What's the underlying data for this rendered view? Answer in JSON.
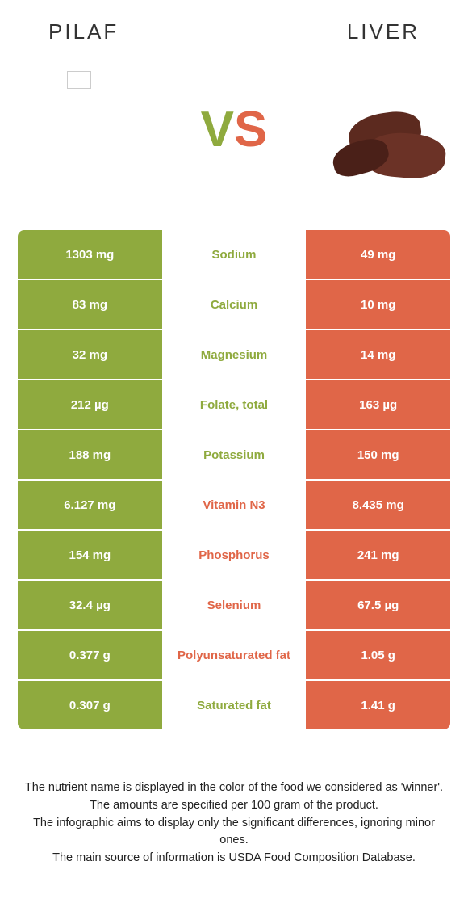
{
  "colors": {
    "green": "#8faa3e",
    "orange": "#e06648",
    "white": "#ffffff"
  },
  "food_left": "PILAF",
  "food_right": "LIVER",
  "vs_v": "V",
  "vs_s": "S",
  "rows": [
    {
      "left": "1303 mg",
      "label": "Sodium",
      "right": "49 mg",
      "winner": "left"
    },
    {
      "left": "83 mg",
      "label": "Calcium",
      "right": "10 mg",
      "winner": "left"
    },
    {
      "left": "32 mg",
      "label": "Magnesium",
      "right": "14 mg",
      "winner": "left"
    },
    {
      "left": "212 µg",
      "label": "Folate, total",
      "right": "163 µg",
      "winner": "left"
    },
    {
      "left": "188 mg",
      "label": "Potassium",
      "right": "150 mg",
      "winner": "left"
    },
    {
      "left": "6.127 mg",
      "label": "Vitamin N3",
      "right": "8.435 mg",
      "winner": "right"
    },
    {
      "left": "154 mg",
      "label": "Phosphorus",
      "right": "241 mg",
      "winner": "right"
    },
    {
      "left": "32.4 µg",
      "label": "Selenium",
      "right": "67.5 µg",
      "winner": "right"
    },
    {
      "left": "0.377 g",
      "label": "Polyunsaturated fat",
      "right": "1.05 g",
      "winner": "right"
    },
    {
      "left": "0.307 g",
      "label": "Saturated fat",
      "right": "1.41 g",
      "winner": "left"
    }
  ],
  "footer": {
    "l1": "The nutrient name is displayed in the color of the food we considered as 'winner'.",
    "l2": "The amounts are specified per 100 gram of the product.",
    "l3": "The infographic aims to display only the significant differences, ignoring minor ones.",
    "l4": "The main source of information is USDA Food Composition Database."
  }
}
